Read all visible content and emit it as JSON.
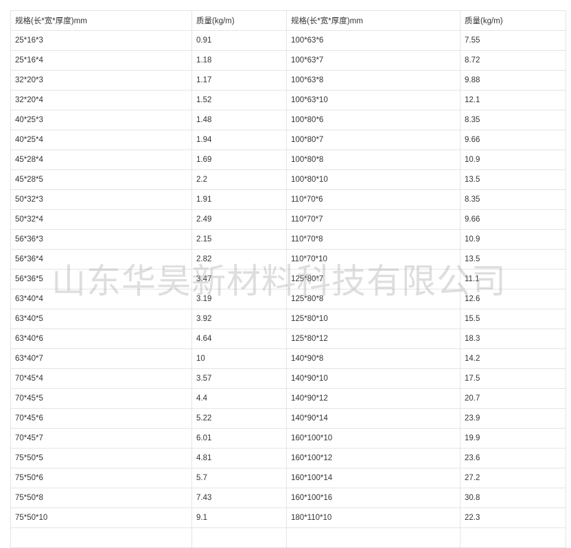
{
  "headers": [
    "规格(长*宽*厚度)mm",
    "质量(kg/m)",
    "规格(长*宽*厚度)mm",
    "质量(kg/m)"
  ],
  "rows": [
    [
      "25*16*3",
      "0.91",
      "100*63*6",
      "7.55"
    ],
    [
      "25*16*4",
      "1.18",
      "100*63*7",
      "8.72"
    ],
    [
      "32*20*3",
      "1.17",
      "100*63*8",
      "9.88"
    ],
    [
      "32*20*4",
      "1.52",
      "100*63*10",
      "12.1"
    ],
    [
      "40*25*3",
      "1.48",
      "100*80*6",
      "8.35"
    ],
    [
      "40*25*4",
      "1.94",
      "100*80*7",
      "9.66"
    ],
    [
      "45*28*4",
      "1.69",
      "100*80*8",
      "10.9"
    ],
    [
      "45*28*5",
      "2.2",
      "100*80*10",
      "13.5"
    ],
    [
      "50*32*3",
      "1.91",
      "110*70*6",
      "8.35"
    ],
    [
      "50*32*4",
      "2.49",
      "110*70*7",
      "9.66"
    ],
    [
      "56*36*3",
      "2.15",
      "110*70*8",
      "10.9"
    ],
    [
      "56*36*4",
      "2.82",
      "110*70*10",
      "13.5"
    ],
    [
      "56*36*5",
      "3.47",
      "125*80*7",
      "11.1"
    ],
    [
      "63*40*4",
      "3.19",
      "125*80*8",
      "12.6"
    ],
    [
      "63*40*5",
      "3.92",
      "125*80*10",
      "15.5"
    ],
    [
      "63*40*6",
      "4.64",
      "125*80*12",
      "18.3"
    ],
    [
      "63*40*7",
      "10",
      "140*90*8",
      "14.2"
    ],
    [
      "70*45*4",
      "3.57",
      "140*90*10",
      "17.5"
    ],
    [
      "70*45*5",
      "4.4",
      "140*90*12",
      "20.7"
    ],
    [
      "70*45*6",
      "5.22",
      "140*90*14",
      "23.9"
    ],
    [
      "70*45*7",
      "6.01",
      "160*100*10",
      "19.9"
    ],
    [
      "75*50*5",
      "4.81",
      "160*100*12",
      "23.6"
    ],
    [
      "75*50*6",
      "5.7",
      "160*100*14",
      "27.2"
    ],
    [
      "75*50*8",
      "7.43",
      "160*100*16",
      "30.8"
    ],
    [
      "75*50*10",
      "9.1",
      "180*110*10",
      "22.3"
    ]
  ],
  "watermark": "山东华昊新材料科技有限公司"
}
